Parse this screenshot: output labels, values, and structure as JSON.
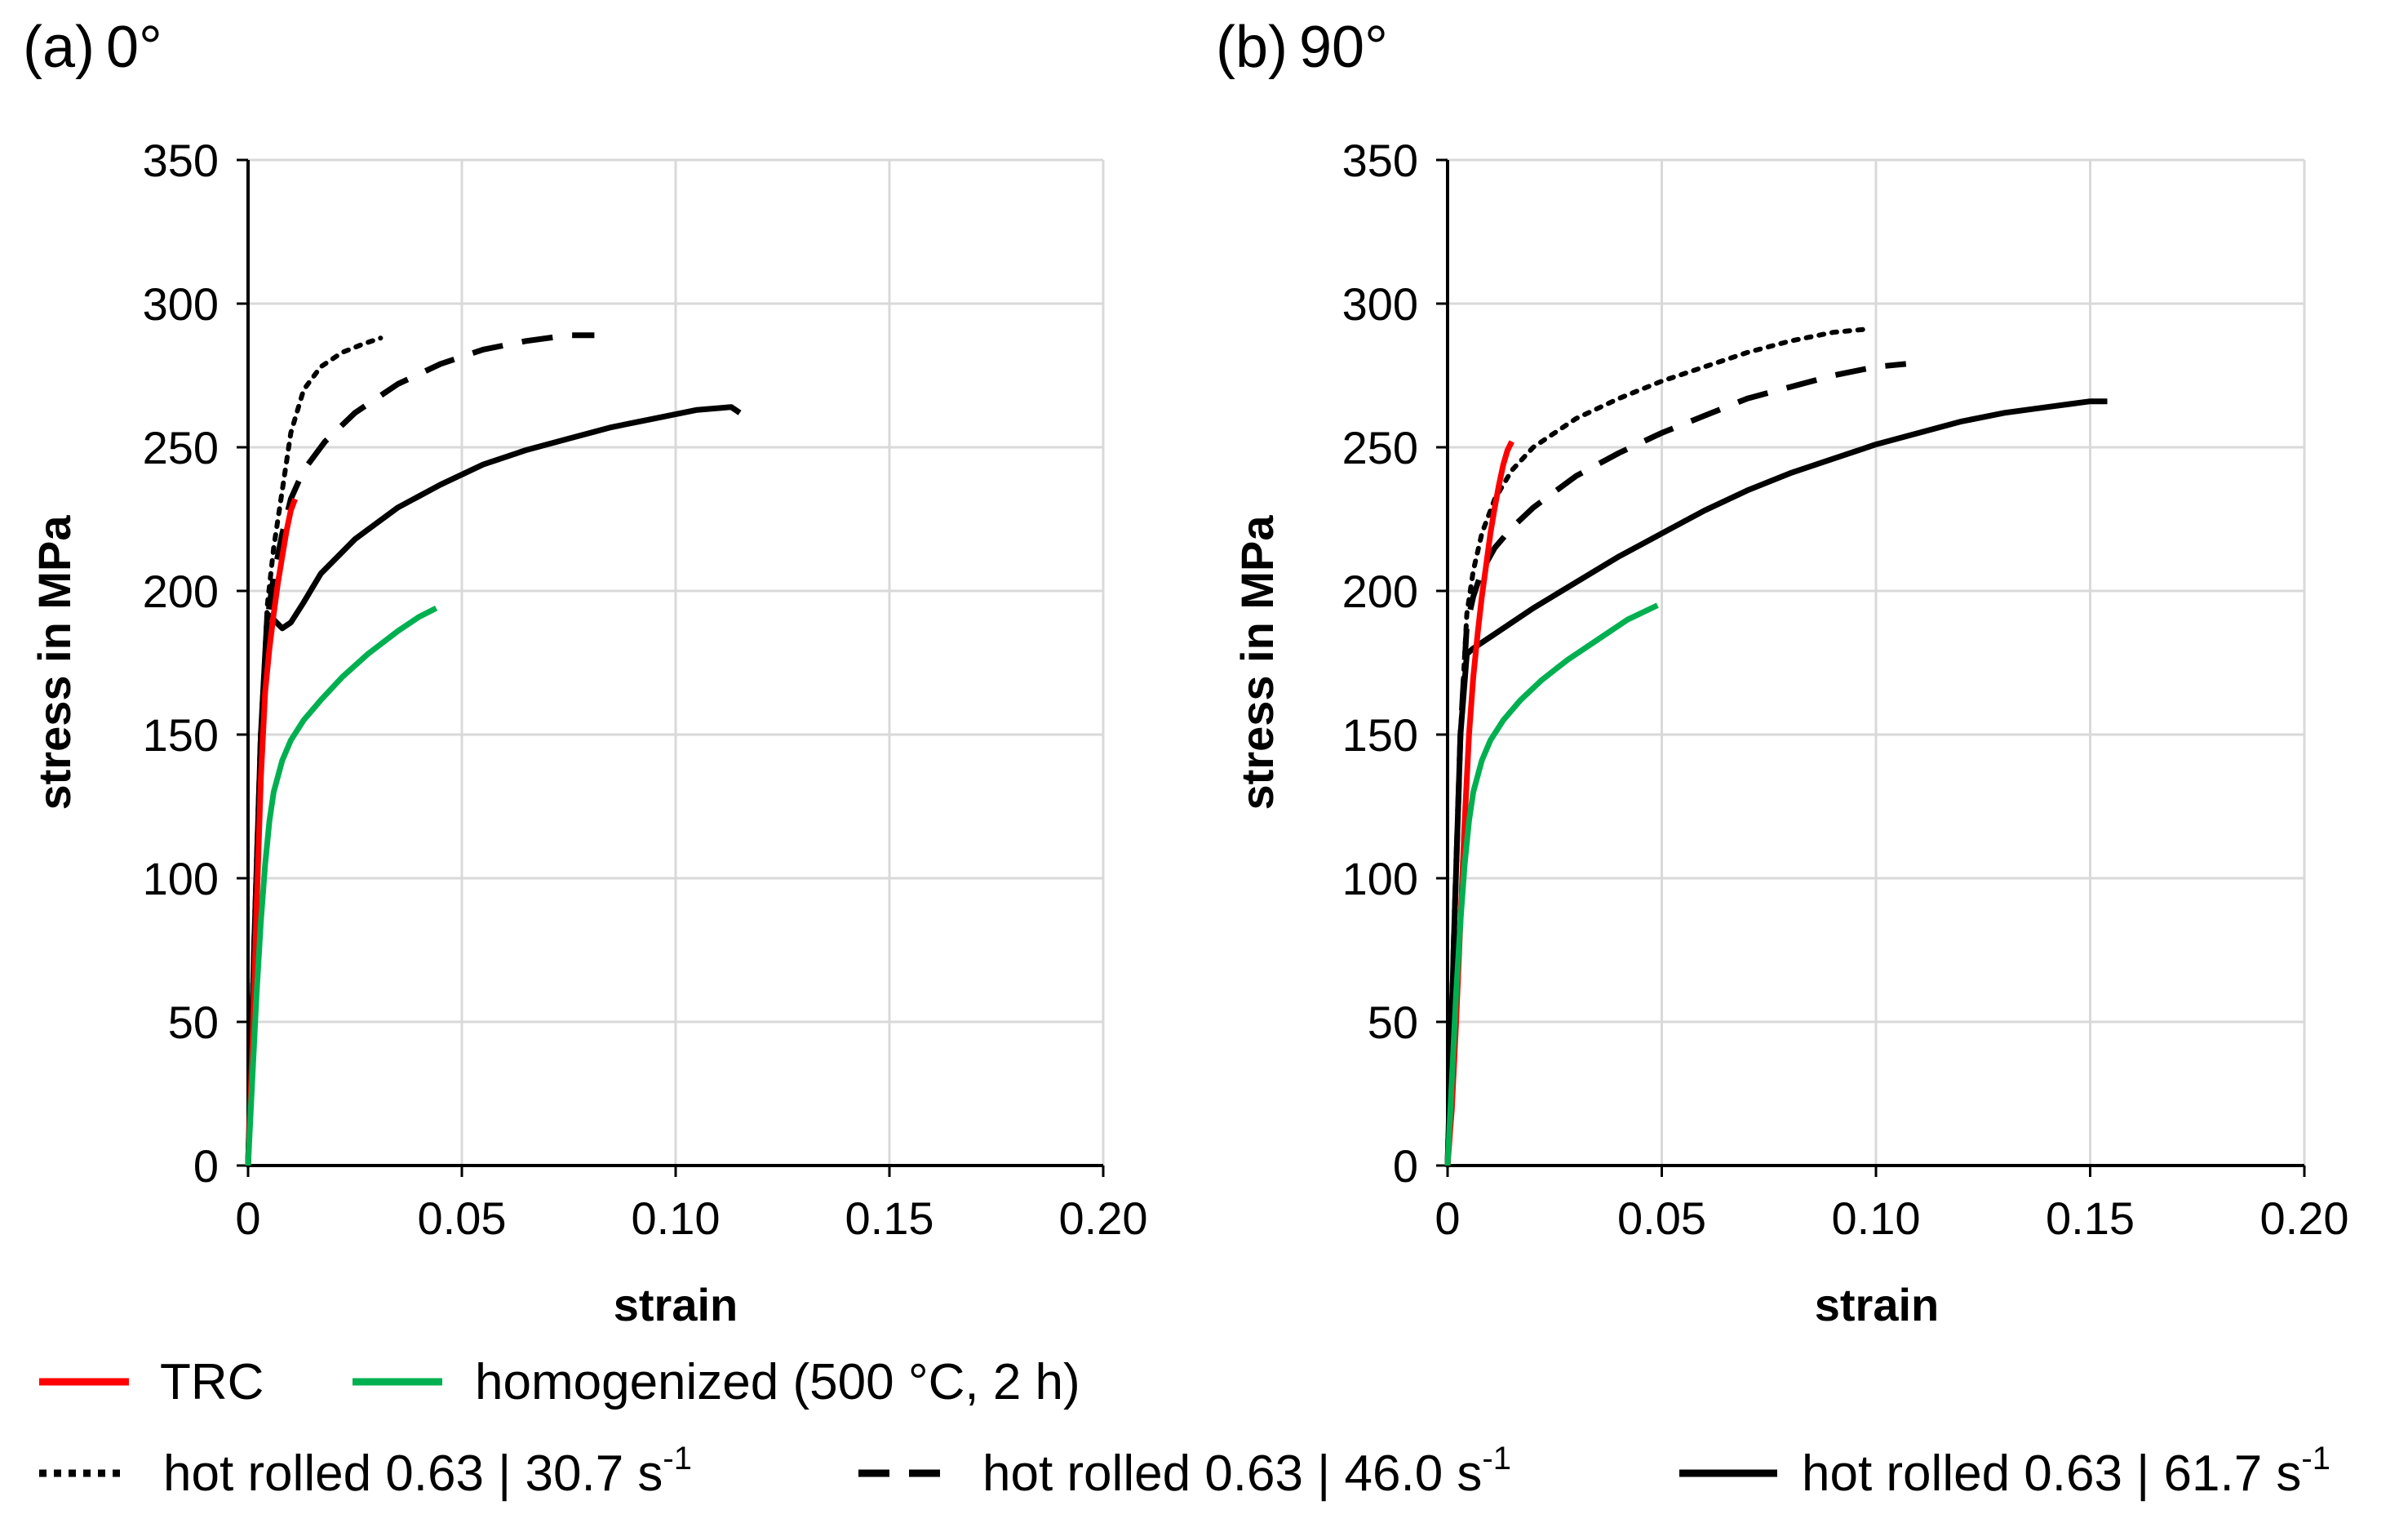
{
  "chart_data": [
    {
      "type": "line",
      "panel_label": "(a)",
      "title": "0°",
      "xlabel": "strain",
      "ylabel": "stress in MPa",
      "xlim": [
        0,
        0.2
      ],
      "ylim": [
        0,
        350
      ],
      "xticks": [
        0,
        0.05,
        0.1,
        0.15,
        0.2
      ],
      "xtick_labels": [
        "0",
        "0.05",
        "0.10",
        "0.15",
        "0.20"
      ],
      "yticks": [
        0,
        50,
        100,
        150,
        200,
        250,
        300,
        350
      ],
      "ytick_labels": [
        "0",
        "50",
        "100",
        "150",
        "200",
        "250",
        "300",
        "350"
      ],
      "grid": true,
      "series": [
        {
          "name": "hot rolled 0.63 | 30.7 s-1",
          "style": "dotted",
          "color": "#000000",
          "x": [
            0,
            0.0015,
            0.003,
            0.0045,
            0.006,
            0.008,
            0.01,
            0.013,
            0.017,
            0.022,
            0.027,
            0.031
          ],
          "y": [
            0,
            80,
            150,
            195,
            215,
            235,
            255,
            270,
            278,
            283,
            286,
            288
          ]
        },
        {
          "name": "hot rolled 0.63 | 46.0 s-1",
          "style": "dashed",
          "color": "#000000",
          "x": [
            0,
            0.0015,
            0.003,
            0.0045,
            0.006,
            0.008,
            0.01,
            0.013,
            0.018,
            0.025,
            0.035,
            0.045,
            0.055,
            0.065,
            0.075,
            0.081
          ],
          "y": [
            0,
            80,
            150,
            190,
            205,
            220,
            232,
            242,
            252,
            262,
            272,
            279,
            284,
            287,
            289,
            289
          ]
        },
        {
          "name": "hot rolled 0.63 | 61.7 s-1",
          "style": "solid",
          "color": "#000000",
          "x": [
            0,
            0.0015,
            0.003,
            0.0045,
            0.006,
            0.008,
            0.01,
            0.013,
            0.017,
            0.025,
            0.035,
            0.045,
            0.055,
            0.065,
            0.075,
            0.085,
            0.095,
            0.105,
            0.113,
            0.115
          ],
          "y": [
            0,
            80,
            150,
            192,
            190,
            187,
            189,
            196,
            206,
            218,
            229,
            237,
            244,
            249,
            253,
            257,
            260,
            263,
            264,
            262
          ]
        },
        {
          "name": "TRC",
          "style": "solid",
          "color": "#ff0000",
          "x": [
            0,
            0.001,
            0.002,
            0.003,
            0.004,
            0.005,
            0.006,
            0.007,
            0.008,
            0.009,
            0.01,
            0.011
          ],
          "y": [
            0,
            40,
            90,
            135,
            165,
            180,
            192,
            203,
            212,
            221,
            228,
            232
          ]
        },
        {
          "name": "homogenized (500 °C, 2 h)",
          "style": "solid",
          "color": "#00b050",
          "x": [
            0,
            0.001,
            0.002,
            0.003,
            0.004,
            0.005,
            0.006,
            0.008,
            0.01,
            0.013,
            0.017,
            0.022,
            0.028,
            0.035,
            0.04,
            0.044
          ],
          "y": [
            0,
            30,
            60,
            85,
            105,
            120,
            130,
            141,
            148,
            155,
            162,
            170,
            178,
            186,
            191,
            194
          ]
        }
      ]
    },
    {
      "type": "line",
      "panel_label": "(b)",
      "title": "90°",
      "xlabel": "strain",
      "ylabel": "stress in MPa",
      "xlim": [
        0,
        0.2
      ],
      "ylim": [
        0,
        350
      ],
      "xticks": [
        0,
        0.05,
        0.1,
        0.15,
        0.2
      ],
      "xtick_labels": [
        "0",
        "0.05",
        "0.10",
        "0.15",
        "0.20"
      ],
      "yticks": [
        0,
        50,
        100,
        150,
        200,
        250,
        300,
        350
      ],
      "ytick_labels": [
        "0",
        "50",
        "100",
        "150",
        "200",
        "250",
        "300",
        "350"
      ],
      "grid": true,
      "series": [
        {
          "name": "hot rolled 0.63 | 30.7 s-1",
          "style": "dotted",
          "color": "#000000",
          "x": [
            0,
            0.0015,
            0.003,
            0.0045,
            0.006,
            0.008,
            0.011,
            0.015,
            0.02,
            0.03,
            0.04,
            0.05,
            0.06,
            0.07,
            0.08,
            0.09,
            0.097
          ],
          "y": [
            0,
            80,
            150,
            192,
            207,
            220,
            232,
            242,
            250,
            260,
            267,
            273,
            278,
            283,
            287,
            290,
            291
          ]
        },
        {
          "name": "hot rolled 0.63 | 46.0 s-1",
          "style": "dashed",
          "color": "#000000",
          "x": [
            0,
            0.0015,
            0.003,
            0.0045,
            0.006,
            0.008,
            0.011,
            0.015,
            0.02,
            0.03,
            0.04,
            0.05,
            0.06,
            0.07,
            0.08,
            0.09,
            0.1,
            0.107
          ],
          "y": [
            0,
            80,
            150,
            188,
            198,
            207,
            215,
            222,
            229,
            240,
            248,
            255,
            261,
            267,
            271,
            275,
            278,
            279
          ]
        },
        {
          "name": "hot rolled 0.63 | 61.7 s-1",
          "style": "solid",
          "color": "#000000",
          "x": [
            0,
            0.0015,
            0.003,
            0.0045,
            0.006,
            0.01,
            0.015,
            0.02,
            0.03,
            0.04,
            0.05,
            0.06,
            0.07,
            0.08,
            0.09,
            0.1,
            0.11,
            0.12,
            0.13,
            0.14,
            0.15,
            0.154
          ],
          "y": [
            0,
            80,
            150,
            178,
            180,
            184,
            189,
            194,
            203,
            212,
            220,
            228,
            235,
            241,
            246,
            251,
            255,
            259,
            262,
            264,
            266,
            266
          ]
        },
        {
          "name": "TRC",
          "style": "solid",
          "color": "#ff0000",
          "x": [
            0,
            0.001,
            0.002,
            0.003,
            0.004,
            0.005,
            0.006,
            0.007,
            0.008,
            0.009,
            0.01,
            0.011,
            0.012,
            0.013,
            0.014,
            0.015
          ],
          "y": [
            0,
            20,
            50,
            85,
            120,
            150,
            170,
            185,
            198,
            209,
            220,
            229,
            237,
            244,
            249,
            252
          ]
        },
        {
          "name": "homogenized (500 °C, 2 h)",
          "style": "solid",
          "color": "#00b050",
          "x": [
            0,
            0.001,
            0.002,
            0.003,
            0.004,
            0.005,
            0.006,
            0.008,
            0.01,
            0.013,
            0.017,
            0.022,
            0.028,
            0.035,
            0.042,
            0.049
          ],
          "y": [
            0,
            30,
            60,
            85,
            105,
            120,
            130,
            141,
            148,
            155,
            162,
            169,
            176,
            183,
            190,
            195
          ]
        }
      ]
    }
  ],
  "legend": {
    "items": [
      {
        "label": "TRC",
        "style": "solid",
        "color": "#ff0000"
      },
      {
        "label": "homogenized (500 °C, 2 h)",
        "style": "solid",
        "color": "#00b050"
      },
      {
        "label": "hot rolled 0.63 | 30.7 s",
        "sup": "-1",
        "style": "dotted",
        "color": "#000000"
      },
      {
        "label": "hot rolled 0.63 | 46.0 s",
        "sup": "-1",
        "style": "dashed",
        "color": "#000000"
      },
      {
        "label": "hot rolled 0.63 | 61.7 s",
        "sup": "-1",
        "style": "solid",
        "color": "#000000"
      }
    ]
  },
  "colors": {
    "grid": "#d9d9d9",
    "axis": "#000000"
  }
}
